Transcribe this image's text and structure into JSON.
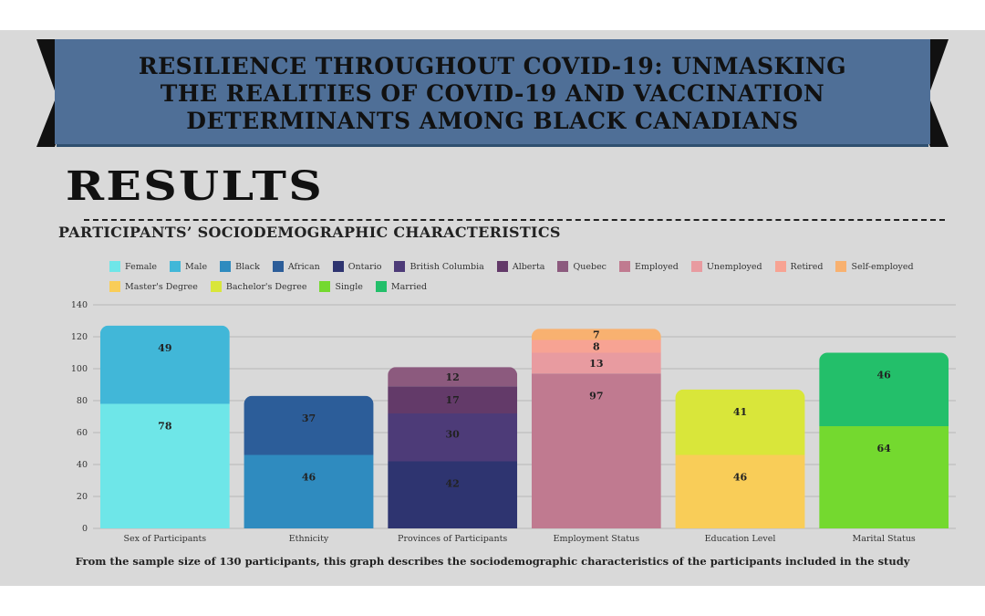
{
  "banner": {
    "title_lines": [
      "RESILIENCE THROUGHOUT COVID-19: UNMASKING",
      "THE REALITIES OF COVID-19 AND VACCINATION",
      "DETERMINANTS AMONG BLACK CANADIANS"
    ],
    "fill_color": "#4f6f97",
    "arrow_color": "#111111"
  },
  "section_heading": "RESULTS",
  "subtitle": "PARTICIPANTS’ SOCIODEMOGRAPHIC CHARACTERISTICS",
  "caption": "From the sample size of 130 participants, this graph describes the sociodemographic characteristics of the participants included in the study",
  "chart_data": {
    "type": "bar",
    "stacked": true,
    "title": "",
    "xlabel": "",
    "ylabel": "",
    "ylim": [
      0,
      140
    ],
    "yticks": [
      0,
      20,
      40,
      60,
      80,
      100,
      120,
      140
    ],
    "grid": true,
    "legend_position": "top",
    "categories": [
      "Sex of Participants",
      "Ethnicity",
      "Provinces of Participants",
      "Employment Status",
      "Education Level",
      "Marital Status"
    ],
    "series": [
      {
        "name": "Female",
        "color": "#6ee6e8",
        "category": "Sex of Participants",
        "value": 78
      },
      {
        "name": "Male",
        "color": "#41b7d8",
        "category": "Sex of Participants",
        "value": 49
      },
      {
        "name": "Black",
        "color": "#2f8bbf",
        "category": "Ethnicity",
        "value": 46
      },
      {
        "name": "African",
        "color": "#2c5d99",
        "category": "Ethnicity",
        "value": 37
      },
      {
        "name": "Ontario",
        "color": "#2e3470",
        "category": "Provinces of Participants",
        "value": 42
      },
      {
        "name": "British Columbia",
        "color": "#4d3b78",
        "category": "Provinces of Participants",
        "value": 30
      },
      {
        "name": "Alberta",
        "color": "#633a69",
        "category": "Provinces of Participants",
        "value": 17
      },
      {
        "name": "Quebec",
        "color": "#8c5a7e",
        "category": "Provinces of Participants",
        "value": 12
      },
      {
        "name": "Employed",
        "color": "#c07a90",
        "category": "Employment Status",
        "value": 97
      },
      {
        "name": "Unemployed",
        "color": "#e89ba0",
        "category": "Employment Status",
        "value": 13
      },
      {
        "name": "Retired",
        "color": "#f7a393",
        "category": "Employment Status",
        "value": 8
      },
      {
        "name": "Self-employed",
        "color": "#f8b170",
        "category": "Employment Status",
        "value": 7
      },
      {
        "name": "Master's Degree",
        "color": "#f9cd58",
        "category": "Education Level",
        "value": 46
      },
      {
        "name": "Bachelor's Degree",
        "color": "#d9e63a",
        "category": "Education Level",
        "value": 41
      },
      {
        "name": "Single",
        "color": "#74d92f",
        "category": "Marital Status",
        "value": 64
      },
      {
        "name": "Married",
        "color": "#23bf6a",
        "category": "Marital Status",
        "value": 46
      }
    ]
  }
}
